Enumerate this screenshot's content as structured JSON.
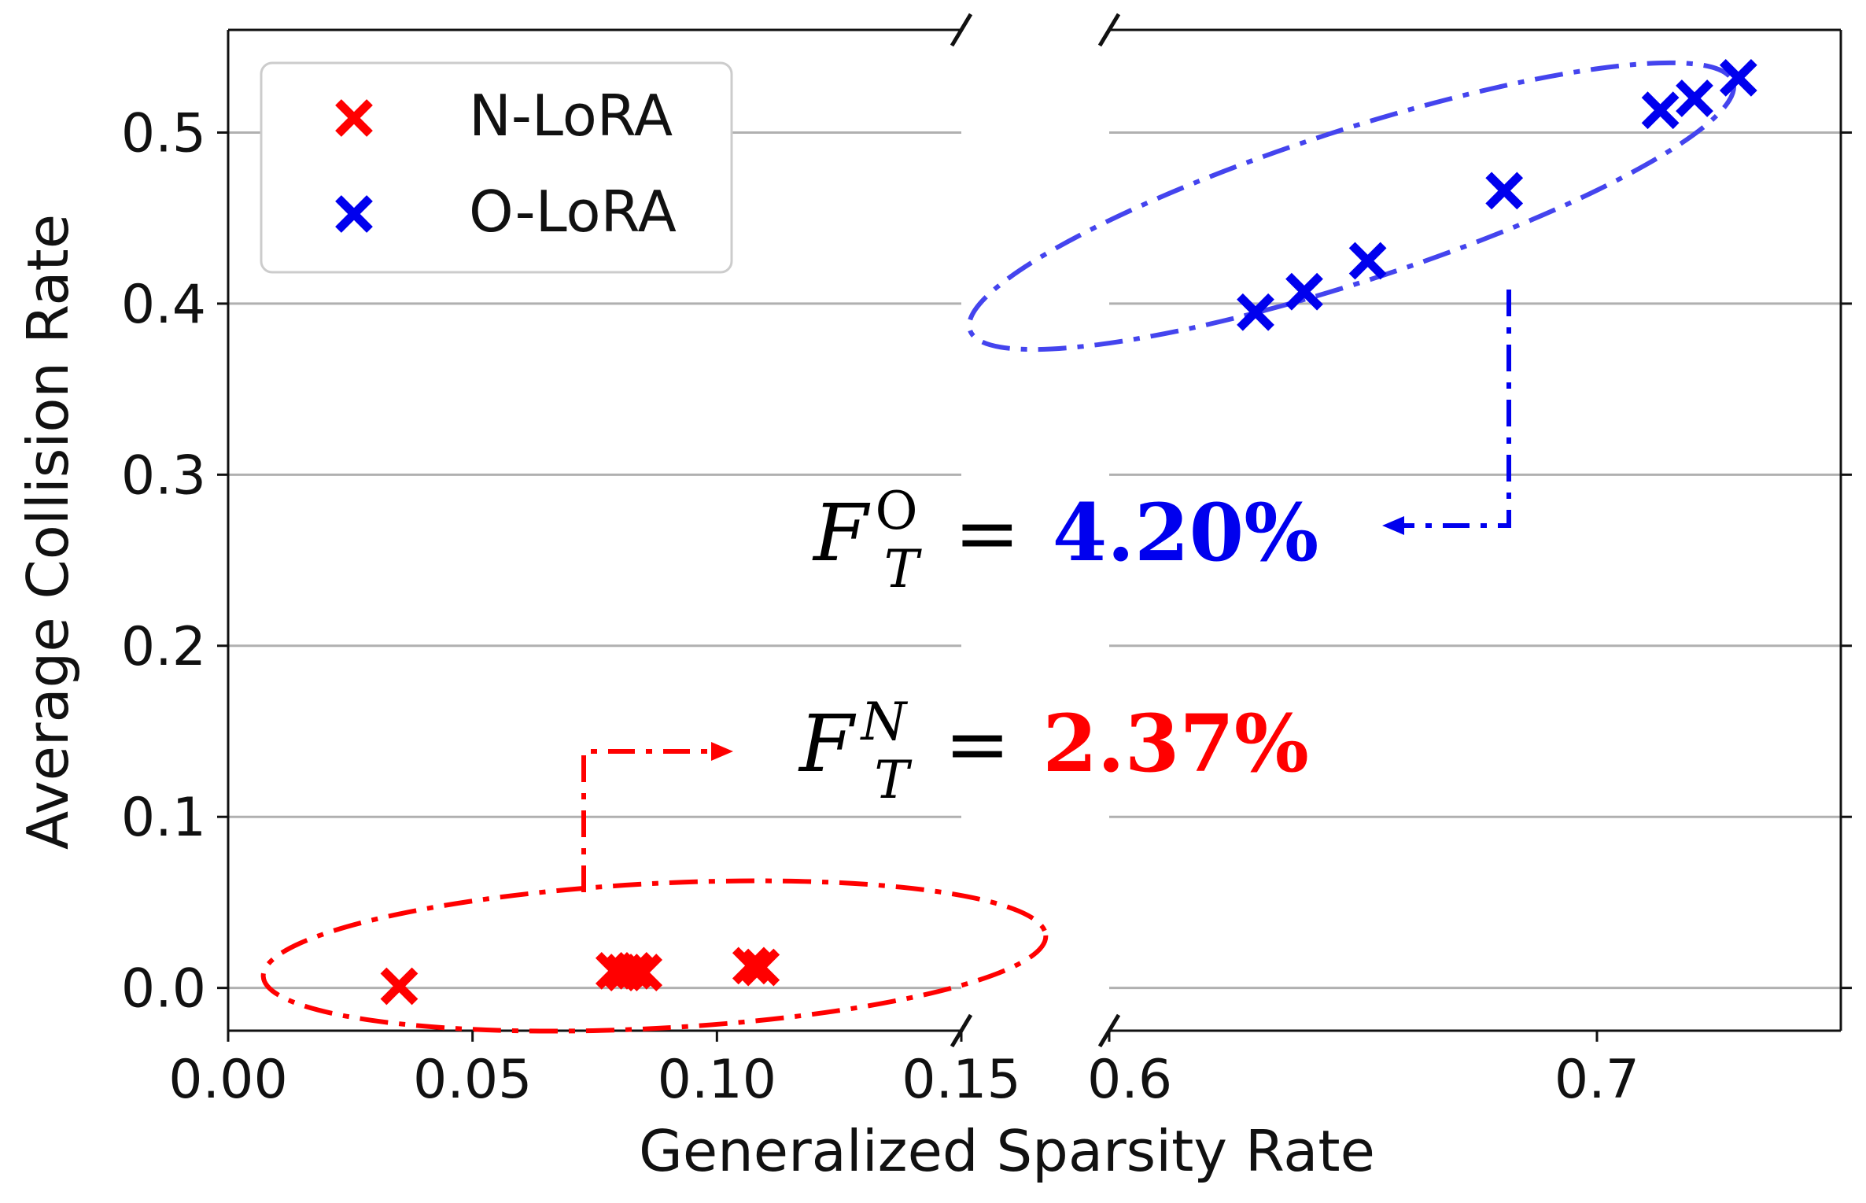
{
  "chart_data": {
    "type": "scatter",
    "title": "",
    "xlabel": "Generalized Sparsity Rate",
    "ylabel": "Average Collision Rate",
    "broken_x_axis": true,
    "x_segments": [
      {
        "xlim": [
          0.0,
          0.15
        ],
        "ticks": [
          0.0,
          0.05,
          0.1,
          0.15
        ],
        "tick_labels": [
          "0.00",
          "0.05",
          "0.10",
          "0.15"
        ]
      },
      {
        "xlim": [
          0.6,
          0.75
        ],
        "ticks": [
          0.6,
          0.7
        ],
        "tick_labels": [
          "0.6",
          "0.7"
        ]
      }
    ],
    "ylim": [
      -0.025,
      0.56
    ],
    "yticks": [
      0.0,
      0.1,
      0.2,
      0.3,
      0.4,
      0.5
    ],
    "ytick_labels": [
      "0.0",
      "0.1",
      "0.2",
      "0.3",
      "0.4",
      "0.5"
    ],
    "grid": "horizontal",
    "legend_position": "top-left",
    "series": [
      {
        "name": "N-LoRA",
        "color": "#ff0000",
        "marker": "x",
        "segment": 0,
        "x": [
          0.035,
          0.079,
          0.081,
          0.083,
          0.085,
          0.107,
          0.109
        ],
        "y": [
          0.001,
          0.01,
          0.009,
          0.01,
          0.009,
          0.013,
          0.012
        ]
      },
      {
        "name": "O-LoRA",
        "color": "#0000ee",
        "marker": "x",
        "segment": 1,
        "x": [
          0.63,
          0.64,
          0.653,
          0.681,
          0.713,
          0.72,
          0.729
        ],
        "y": [
          0.395,
          0.407,
          0.425,
          0.466,
          0.513,
          0.52,
          0.532
        ]
      }
    ],
    "annotations": [
      {
        "name": "o-lora-forgetting",
        "symbol": "F",
        "subscript": "T",
        "superscript": "O",
        "equals": "=",
        "value": "4.20%",
        "value_color": "#0000ee",
        "ellipse_color": "#4444ee"
      },
      {
        "name": "n-lora-forgetting",
        "symbol": "F",
        "subscript": "T",
        "superscript": "N",
        "equals": "=",
        "value": "2.37%",
        "value_color": "#ff0000",
        "ellipse_color": "#ff0000"
      }
    ]
  }
}
